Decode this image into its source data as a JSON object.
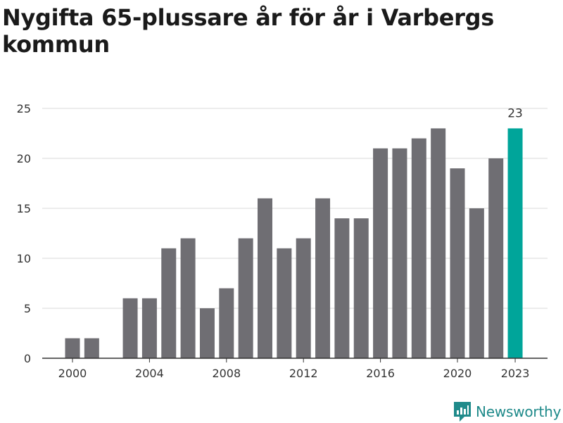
{
  "title": "Nygifta 65-plussare år för år i Varbergs kommun",
  "brand": {
    "name": "Newsworthy",
    "color": "#1f8a8a"
  },
  "colors": {
    "bar": "#6f6e73",
    "highlight": "#00a59a",
    "grid": "#d9d9d9",
    "axis": "#333333",
    "text": "#333333"
  },
  "chart_data": {
    "type": "bar",
    "categories": [
      "2000",
      "2001",
      "2002",
      "2003",
      "2004",
      "2005",
      "2006",
      "2007",
      "2008",
      "2009",
      "2010",
      "2011",
      "2012",
      "2013",
      "2014",
      "2015",
      "2016",
      "2017",
      "2018",
      "2019",
      "2020",
      "2021",
      "2022",
      "2023"
    ],
    "values": [
      2,
      2,
      0,
      6,
      6,
      11,
      12,
      5,
      7,
      12,
      16,
      11,
      12,
      16,
      14,
      14,
      21,
      21,
      22,
      23,
      19,
      15,
      20,
      23
    ],
    "x_tick_labels": [
      "2000",
      "2004",
      "2008",
      "2012",
      "2016",
      "2020",
      "2023"
    ],
    "y_ticks": [
      0,
      5,
      10,
      15,
      20,
      25
    ],
    "ylim": [
      0,
      25
    ],
    "highlight_category": "2023",
    "highlight_label": "23",
    "grid": true
  }
}
